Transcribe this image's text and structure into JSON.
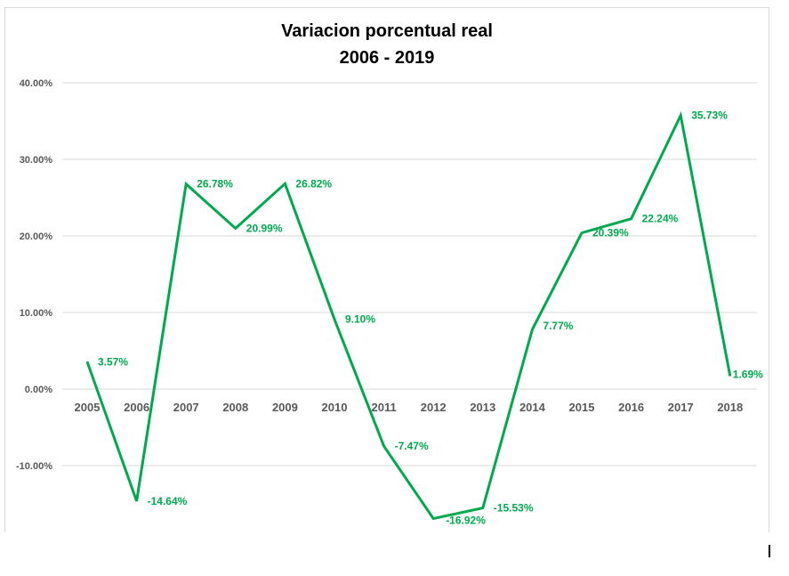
{
  "chart_data": {
    "type": "line",
    "title": [
      "Variacion porcentual real",
      "2006 - 2019"
    ],
    "categories": [
      "2005",
      "2006",
      "2007",
      "2008",
      "2009",
      "2010",
      "2011",
      "2012",
      "2013",
      "2014",
      "2015",
      "2016",
      "2017",
      "2018"
    ],
    "series": [
      {
        "values": [
          3.57,
          -14.64,
          26.78,
          20.99,
          26.82,
          9.1,
          -7.47,
          -16.92,
          -15.53,
          7.77,
          20.39,
          22.24,
          35.73,
          1.69
        ],
        "labels": [
          "3.57%",
          "-14.64%",
          "26.78%",
          "20.99%",
          "26.82%",
          "9.10%",
          "-7.47%",
          "-16.92%",
          "-15.53%",
          "7.77%",
          "20.39%",
          "22.24%",
          "35.73%",
          "1.69%"
        ],
        "color": "#00a94f"
      }
    ],
    "yticks": [
      40,
      30,
      20,
      10,
      0,
      -10
    ],
    "ytick_labels": [
      "40.00%",
      "30.00%",
      "20.00%",
      "10.00%",
      "0.00%",
      "-10.00%"
    ],
    "ylim": [
      -18.5,
      40
    ],
    "grid": true,
    "legend": "none"
  }
}
